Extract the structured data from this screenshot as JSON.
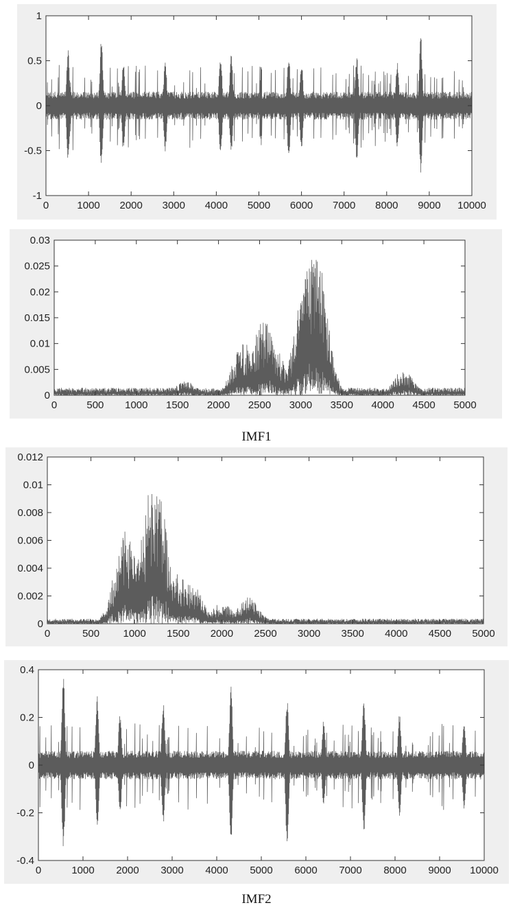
{
  "figure": {
    "captions": [
      "IMF1",
      "IMF2"
    ]
  },
  "colors": {
    "series": "#5c5c5c",
    "panel": "#efefef",
    "axes": "#333333"
  },
  "chart_data": [
    {
      "type": "line",
      "xlim": [
        0,
        10000
      ],
      "ylim": [
        -1,
        1
      ],
      "xticks": [
        0,
        1000,
        2000,
        3000,
        4000,
        5000,
        6000,
        7000,
        8000,
        9000,
        10000
      ],
      "yticks": [
        "-1",
        "-0.5",
        "0",
        "0.5",
        "1"
      ],
      "grid": false,
      "series": [
        {
          "kind": "signal",
          "envelope": 0.13,
          "baseline": 0,
          "peaks": [
            [
              520,
              0.63,
              -0.64
            ],
            [
              1300,
              0.76,
              -0.72
            ],
            [
              1820,
              0.5,
              -0.5
            ],
            [
              2800,
              0.5,
              -0.52
            ],
            [
              4100,
              0.58,
              -0.58
            ],
            [
              4350,
              0.58,
              -0.56
            ],
            [
              5700,
              0.58,
              -0.62
            ],
            [
              7300,
              0.55,
              -0.63
            ],
            [
              8800,
              0.79,
              -0.78
            ],
            [
              6000,
              0.5,
              -0.5
            ],
            [
              8250,
              0.5,
              -0.5
            ]
          ]
        }
      ]
    },
    {
      "type": "line",
      "xlim": [
        0,
        5000
      ],
      "ylim": [
        0,
        0.03
      ],
      "xticks": [
        0,
        500,
        1000,
        1500,
        2000,
        2500,
        3000,
        3500,
        4000,
        4500,
        5000
      ],
      "yticks": [
        "0",
        "0.005",
        "0.01",
        "0.015",
        "0.02",
        "0.025",
        "0.03"
      ],
      "grid": false,
      "series": [
        {
          "kind": "spectrum",
          "floor": 0.0008,
          "peaks": [
            [
              2550,
              0.0152
            ],
            [
              2300,
              0.0104
            ],
            [
              2680,
              0.0095
            ],
            [
              3120,
              0.028
            ],
            [
              3200,
              0.0272
            ],
            [
              3050,
              0.021
            ],
            [
              4250,
              0.0048
            ],
            [
              1600,
              0.0028
            ]
          ]
        }
      ]
    },
    {
      "type": "line",
      "xlim": [
        0,
        5000
      ],
      "ylim": [
        0,
        0.012
      ],
      "xticks": [
        0,
        500,
        1000,
        1500,
        2000,
        2500,
        3000,
        3500,
        4000,
        4500,
        5000
      ],
      "yticks": [
        "0",
        "0.002",
        "0.004",
        "0.006",
        "0.008",
        "0.01",
        "0.012"
      ],
      "grid": false,
      "series": [
        {
          "kind": "spectrum",
          "floor": 0.0002,
          "peaks": [
            [
              900,
              0.0068
            ],
            [
              1200,
              0.01
            ],
            [
              1250,
              0.0101
            ],
            [
              1050,
              0.0052
            ],
            [
              1500,
              0.0036
            ],
            [
              1650,
              0.003
            ],
            [
              2300,
              0.0019
            ],
            [
              2000,
              0.0015
            ]
          ]
        }
      ]
    },
    {
      "type": "line",
      "xlim": [
        0,
        10000
      ],
      "ylim": [
        -0.4,
        0.4
      ],
      "xticks": [
        0,
        1000,
        2000,
        3000,
        4000,
        5000,
        6000,
        7000,
        8000,
        9000,
        10000
      ],
      "yticks": [
        "-0.4",
        "-0.2",
        "0",
        "0.2",
        "0.4"
      ],
      "grid": false,
      "series": [
        {
          "kind": "signal",
          "envelope": 0.05,
          "baseline": 0,
          "peaks": [
            [
              560,
              0.39,
              -0.37
            ],
            [
              1320,
              0.3,
              -0.28
            ],
            [
              2800,
              0.27,
              -0.26
            ],
            [
              4320,
              0.33,
              -0.32
            ],
            [
              5580,
              0.29,
              -0.35
            ],
            [
              7300,
              0.3,
              -0.3
            ],
            [
              1830,
              0.22,
              -0.2
            ],
            [
              8100,
              0.22,
              -0.22
            ],
            [
              9550,
              0.18,
              -0.2
            ],
            [
              6400,
              0.2,
              -0.18
            ]
          ]
        }
      ]
    }
  ]
}
